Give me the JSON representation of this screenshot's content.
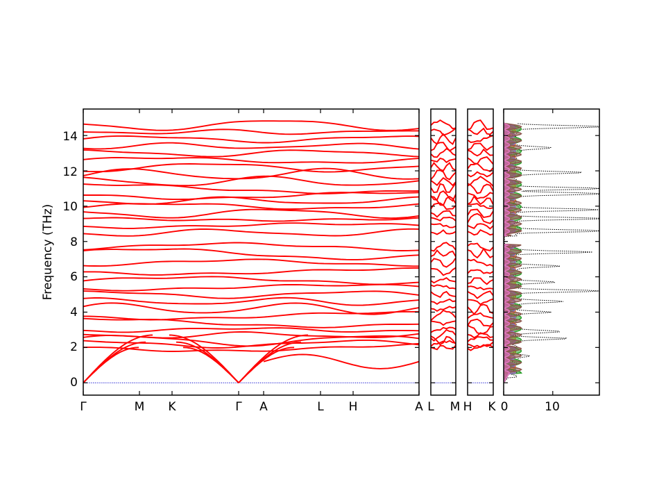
{
  "chart_data": [
    {
      "type": "line",
      "title": "",
      "ylabel": "Frequency (THz)",
      "ylim": [
        -0.7,
        15.5
      ],
      "yticks": [
        0,
        2,
        4,
        6,
        8,
        10,
        12,
        14
      ],
      "segments": [
        {
          "id": "gamma-to-A",
          "path_labels": [
            "Γ",
            "M",
            "K",
            "Γ"
          ],
          "x": [
            0,
            1,
            1.58,
            3
          ]
        },
        {
          "id": "A-path",
          "path_labels": [
            "Γ",
            "A",
            "L",
            "H",
            "A"
          ],
          "x": [
            0,
            0.36,
            1.2,
            1.68,
            2.65
          ]
        },
        {
          "id": "L-M",
          "path_labels": [
            "L",
            "M"
          ],
          "x": [
            0,
            1
          ]
        },
        {
          "id": "H-K",
          "path_labels": [
            "H",
            "K"
          ],
          "x": [
            0,
            1
          ]
        }
      ],
      "series": [
        {
          "name": "",
          "color": "#ff0000",
          "acoustic_top": [
            0,
            2.6,
            2.7,
            0,
            2.1,
            2.3,
            2.5,
            2.6
          ]
        },
        {
          "name": "",
          "color": "#ff0000",
          "optical_low_band": [
            2.0,
            2.2,
            2.4,
            2.7,
            3.0,
            3.4,
            3.8,
            4.2,
            4.6,
            5.0,
            5.4,
            5.8,
            6.3,
            6.8,
            7.3,
            7.7
          ]
        },
        {
          "name": "",
          "color": "#ff0000",
          "optical_high_band": [
            8.5,
            8.9,
            9.3,
            9.6,
            10.0,
            10.3,
            10.6,
            11.0,
            11.4,
            11.8,
            12.2,
            12.6,
            13.0,
            13.4,
            13.8,
            14.2,
            14.6
          ]
        }
      ],
      "zero_line_color": "#0000cc"
    },
    {
      "type": "area",
      "title": "",
      "xlabel": "",
      "xticks": [
        0,
        10
      ],
      "xlim": [
        0,
        19.5
      ],
      "ylim": [
        -0.7,
        15.5
      ],
      "series_colors": [
        "#1f77b4",
        "#ff7f0e",
        "#2ca02c",
        "#d62728",
        "#9467bd",
        "#8c564b",
        "#e377c2"
      ],
      "total_dos_style": "black dotted",
      "total_dos_peaks": [
        {
          "freq": 14.5,
          "value": 19.0
        },
        {
          "freq": 13.3,
          "value": 8.0
        },
        {
          "freq": 11.9,
          "value": 14.0
        },
        {
          "freq": 11.0,
          "value": 18.0
        },
        {
          "freq": 10.7,
          "value": 19.0
        },
        {
          "freq": 9.8,
          "value": 17.0
        },
        {
          "freq": 9.3,
          "value": 18.0
        },
        {
          "freq": 8.6,
          "value": 18.5
        },
        {
          "freq": 7.4,
          "value": 15.5
        },
        {
          "freq": 6.6,
          "value": 9.0
        },
        {
          "freq": 5.7,
          "value": 8.0
        },
        {
          "freq": 5.2,
          "value": 17.5
        },
        {
          "freq": 4.6,
          "value": 10.5
        },
        {
          "freq": 4.0,
          "value": 7.0
        },
        {
          "freq": 2.9,
          "value": 10.0
        },
        {
          "freq": 2.5,
          "value": 10.5
        },
        {
          "freq": 1.5,
          "value": 3.0
        },
        {
          "freq": 0.0,
          "value": 0.0
        }
      ]
    }
  ],
  "axes": {
    "band_ylabel": "Frequency (THz)",
    "yticks": [
      "0",
      "2",
      "4",
      "6",
      "8",
      "10",
      "12",
      "14"
    ],
    "panel1_xticks": [
      "Γ",
      "M",
      "K",
      "Γ",
      "A",
      "L",
      "H",
      "A"
    ],
    "panel2_xticks": [
      "L",
      "M"
    ],
    "panel3_xticks": [
      "H",
      "K"
    ],
    "dos_xticks": [
      "0",
      "10"
    ]
  }
}
